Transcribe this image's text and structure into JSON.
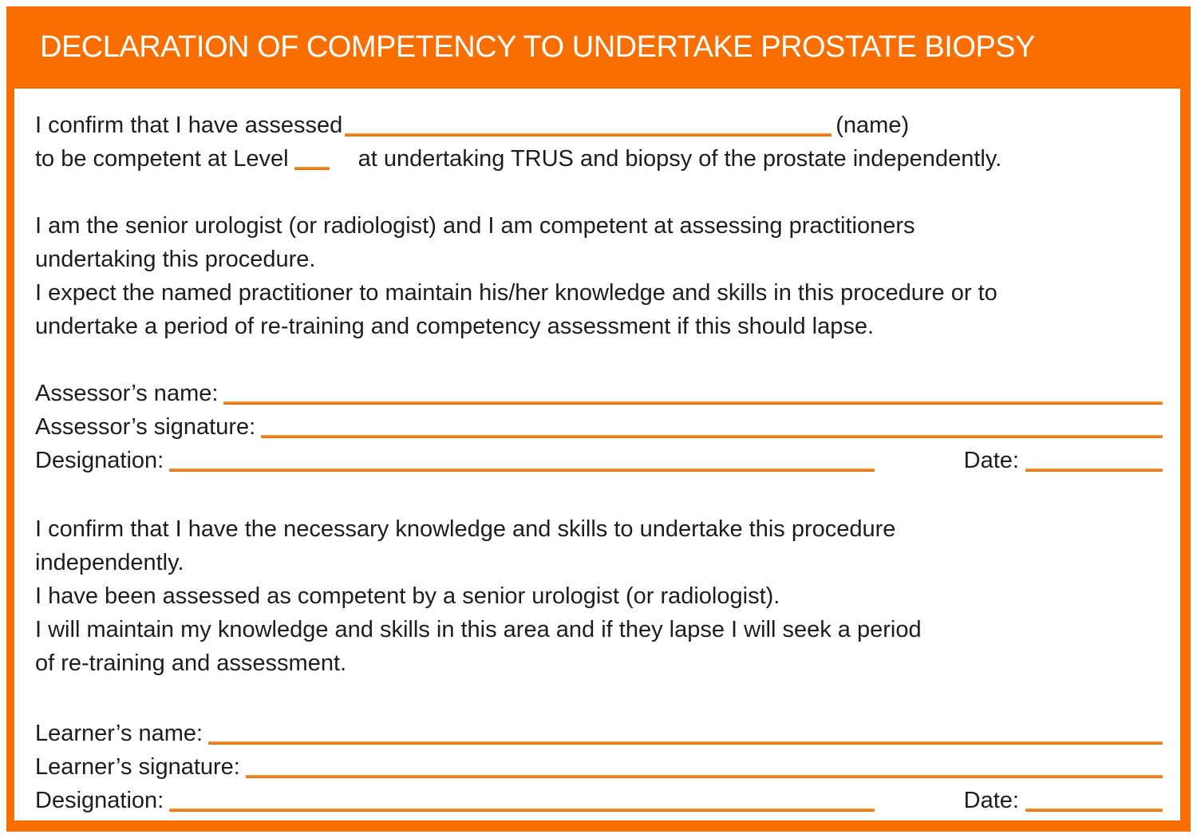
{
  "colors": {
    "orange": "#F96E00",
    "underline": "#EF6C03",
    "text": "#1D1D1B",
    "header_text": "#FFFFFF"
  },
  "header": {
    "title": "DECLARATION OF COMPETENCY TO UNDERTAKE PROSTATE BIOPSY"
  },
  "intro": {
    "line1_before": "I confirm that I have assessed",
    "line1_after": "(name)",
    "line2_before": "to be competent at Level",
    "line2_after": "at undertaking TRUS and biopsy of the prostate independently."
  },
  "assessor_statement": {
    "lines": [
      "I am the senior urologist (or radiologist) and I am competent at assessing practitioners",
      "undertaking this procedure.",
      "I expect the named practitioner to maintain his/her knowledge and skills in this procedure or to",
      "undertake a period of re-training and competency assessment if this should lapse."
    ]
  },
  "assessor_fields": {
    "name_label": "Assessor’s name:",
    "signature_label": "Assessor’s signature:",
    "designation_label": "Designation:",
    "date_label": "Date:"
  },
  "learner_statement": {
    "lines": [
      "I confirm that I have the necessary knowledge and skills to undertake this procedure",
      "independently.",
      "I have been assessed as competent by a senior urologist (or radiologist).",
      "I will maintain my knowledge and skills in this area and if they lapse I will seek a period",
      "of re-training and assessment."
    ]
  },
  "learner_fields": {
    "name_label": "Learner’s name:",
    "signature_label": "Learner’s signature:",
    "designation_label": "Designation:",
    "date_label": "Date:"
  }
}
